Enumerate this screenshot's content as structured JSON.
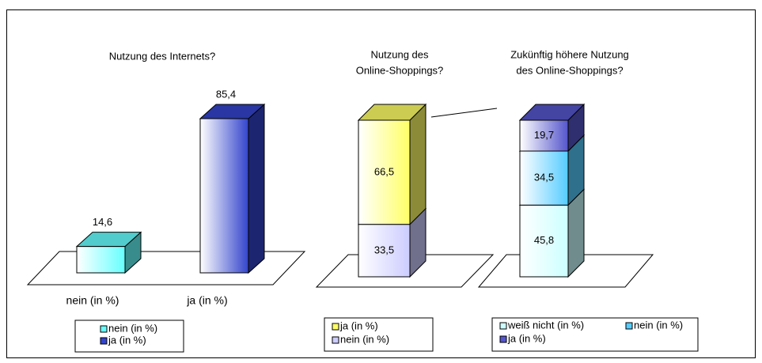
{
  "chart_data": [
    {
      "type": "bar3d",
      "title": [
        "Nutzung des Internets?"
      ],
      "categories": [
        "nein (in %)",
        "ja (in %)"
      ],
      "values": [
        14.6,
        85.4
      ],
      "value_labels": [
        "14,6",
        "85,4"
      ],
      "colors": [
        "#66ffff",
        "#3344cc"
      ]
    },
    {
      "type": "stacked3d",
      "title": [
        "Nutzung des",
        "Online-Shoppings?"
      ],
      "series": [
        {
          "name": "nein (in %)",
          "color": "#ccccff",
          "values": [
            33.5
          ],
          "value_labels": [
            "33,5"
          ]
        },
        {
          "name": "ja (in %)",
          "color": "#ffff66",
          "values": [
            66.5
          ],
          "value_labels": [
            "66,5"
          ]
        }
      ],
      "legend_order": [
        1,
        0
      ]
    },
    {
      "type": "stacked3d",
      "title": [
        "Zukünftig höhere Nutzung",
        "des Online-Shoppings?"
      ],
      "series": [
        {
          "name": "weiß nicht (in %)",
          "color": "#ccffff",
          "values": [
            45.8
          ],
          "value_labels": [
            "45,8"
          ]
        },
        {
          "name": "nein (in %)",
          "color": "#55ccff",
          "values": [
            34.5
          ],
          "value_labels": [
            "34,5"
          ]
        },
        {
          "name": "ja (in %)",
          "color": "#5555cc",
          "values": [
            19.7
          ],
          "value_labels": [
            "19,7"
          ]
        }
      ],
      "legend_order": [
        0,
        1,
        2
      ]
    }
  ]
}
